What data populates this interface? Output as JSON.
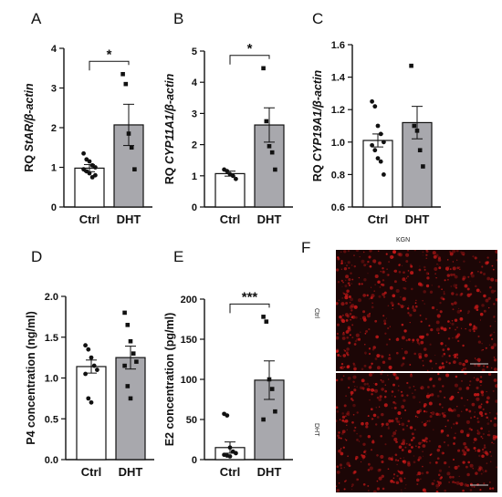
{
  "colors": {
    "ctrl_bar": "#ffffff",
    "dht_bar": "#a8a8ad",
    "axis": "#111111",
    "micrograph_bg": "#1c0606",
    "signal": "#d21a1a"
  },
  "chart_data": [
    {
      "panel": "A",
      "type": "bar",
      "ylabel": "RQ StAR/β-actin",
      "ylabel_plain": "RQ ",
      "ylabel_italic": "StAR/β-actin",
      "ylim": [
        0,
        4
      ],
      "yticks": [
        "0",
        "1",
        "2",
        "3",
        "4"
      ],
      "yvals": [
        0,
        1,
        2,
        3,
        4
      ],
      "categories": [
        "Ctrl",
        "DHT"
      ],
      "values": [
        0.98,
        2.07
      ],
      "sem": [
        0.09,
        0.52
      ],
      "points": [
        [
          1.35,
          1.2,
          1.15,
          1.05,
          1.0,
          0.95,
          0.9,
          0.85,
          0.75,
          0.8
        ],
        [
          3.35,
          3.1,
          1.85,
          1.5,
          0.95
        ]
      ],
      "significance": "*",
      "grid": false
    },
    {
      "panel": "B",
      "type": "bar",
      "ylabel": "RQ CYP11A1/β-actin",
      "ylabel_plain": "RQ ",
      "ylabel_italic": "CYP11A1/β-actin",
      "ylim": [
        0,
        5
      ],
      "yticks": [
        "0",
        "1",
        "2",
        "3",
        "4",
        "5"
      ],
      "yvals": [
        0,
        1,
        2,
        3,
        4,
        5
      ],
      "categories": [
        "Ctrl",
        "DHT"
      ],
      "values": [
        1.07,
        2.63
      ],
      "sem": [
        0.08,
        0.55
      ],
      "points": [
        [
          1.2,
          1.15,
          1.05,
          1.0,
          0.9
        ],
        [
          4.45,
          2.75,
          1.95,
          1.75,
          1.2
        ]
      ],
      "significance": "*",
      "grid": false
    },
    {
      "panel": "C",
      "type": "bar",
      "ylabel": "RQ CYP19A1/β-actin",
      "ylabel_plain": "RQ ",
      "ylabel_italic": "CYP19A1/β-actin",
      "ylim": [
        0.6,
        1.6
      ],
      "yticks": [
        "0.6",
        "0.8",
        "1.0",
        "1.2",
        "1.4",
        "1.6"
      ],
      "yvals": [
        0.6,
        0.8,
        1.0,
        1.2,
        1.4,
        1.6
      ],
      "categories": [
        "Ctrl",
        "DHT"
      ],
      "values": [
        1.01,
        1.12
      ],
      "sem": [
        0.04,
        0.1
      ],
      "points": [
        [
          1.25,
          1.22,
          1.1,
          1.05,
          1.0,
          0.98,
          0.95,
          0.9,
          0.88,
          0.8
        ],
        [
          1.47,
          1.1,
          1.07,
          0.95,
          0.85
        ]
      ],
      "significance": "",
      "grid": false
    },
    {
      "panel": "D",
      "type": "bar",
      "ylabel": "P4 concentration (ng/ml)",
      "ylabel_plain": "P4 concentration (ng/ml)",
      "ylabel_italic": "",
      "ylim": [
        0,
        2.0
      ],
      "yticks": [
        "0.0",
        "0.5",
        "1.0",
        "1.5",
        "2.0"
      ],
      "yvals": [
        0,
        0.5,
        1.0,
        1.5,
        2.0
      ],
      "categories": [
        "Ctrl",
        "DHT"
      ],
      "values": [
        1.14,
        1.25
      ],
      "sem": [
        0.08,
        0.14
      ],
      "points": [
        [
          1.4,
          1.35,
          1.25,
          1.15,
          1.1,
          1.05,
          0.75,
          0.7
        ],
        [
          1.8,
          1.65,
          1.45,
          1.3,
          1.2,
          1.15,
          0.9,
          0.75
        ]
      ],
      "significance": "",
      "grid": false
    },
    {
      "panel": "E",
      "type": "bar",
      "ylabel": "E2 concentration (pg/ml)",
      "ylabel_plain": "E2 concentration (pg/ml)",
      "ylabel_italic": "",
      "ylim": [
        0,
        200
      ],
      "yticks": [
        "0",
        "50",
        "100",
        "150",
        "200"
      ],
      "yvals": [
        0,
        50,
        100,
        150,
        200
      ],
      "categories": [
        "Ctrl",
        "DHT"
      ],
      "values": [
        15,
        99
      ],
      "sem": [
        7,
        24
      ],
      "points": [
        [
          57,
          55,
          15,
          10,
          8,
          6,
          5,
          4
        ],
        [
          178,
          172,
          100,
          88,
          60,
          50
        ]
      ],
      "significance": "***",
      "grid": false
    }
  ],
  "micrograph": {
    "panel": "F",
    "title": "KGN",
    "rows": [
      {
        "label": "Ctrl"
      },
      {
        "label": "DHT"
      }
    ]
  }
}
